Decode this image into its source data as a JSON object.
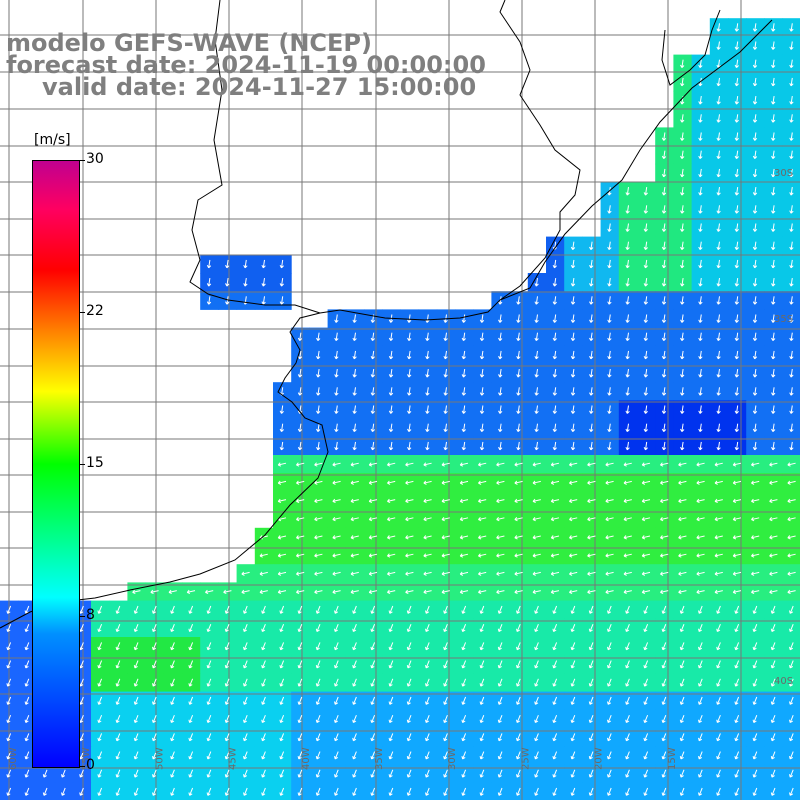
{
  "title": {
    "line1": "modelo GEFS-WAVE (NCEP)",
    "line2": "forecast date: 2024-11-19 00:00:00",
    "line3": "valid date: 2024-11-27 15:00:00"
  },
  "colorbar": {
    "unit": "[m/s]",
    "ticks": [
      "30",
      "22",
      "15",
      "8",
      "0"
    ],
    "range": [
      0,
      30
    ],
    "colors": [
      "#0000ff",
      "#0090ff",
      "#00ffff",
      "#00ff00",
      "#ffff00",
      "#ff8000",
      "#ff0000",
      "#c00090"
    ]
  },
  "map": {
    "lat_labels": [
      "30S",
      "35S",
      "40S"
    ],
    "lon_labels": [
      "60W",
      "55W",
      "50W",
      "45W",
      "40W",
      "35W",
      "30W",
      "25W",
      "20W",
      "15W"
    ]
  }
}
